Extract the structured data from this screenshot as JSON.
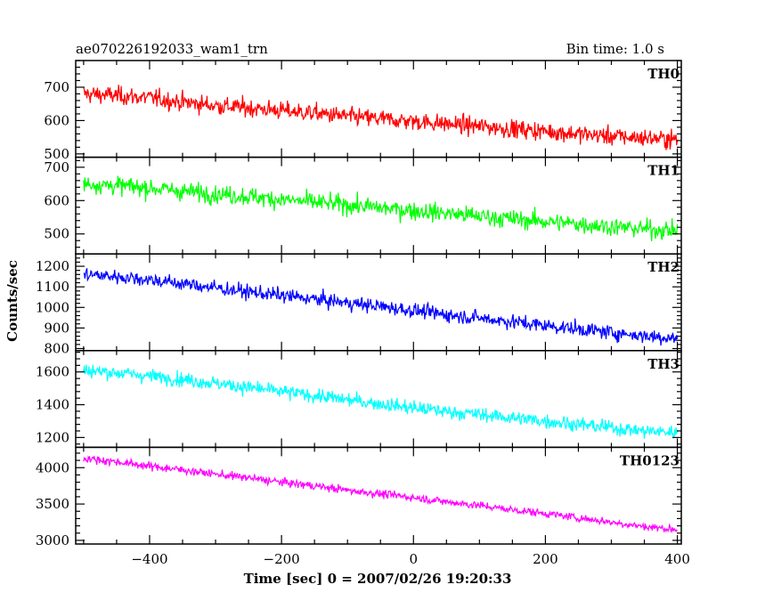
{
  "header": {
    "title": "ae070226192033_wam1_trn",
    "bin_time": "Bin time: 1.0 s"
  },
  "chart_data": {
    "type": "line",
    "xlabel": "Time [sec] 0 = 2007/02/26 19:20:33",
    "ylabel": "Counts/sec",
    "xlim": [
      -512,
      406
    ],
    "x_ticks": [
      -400,
      -200,
      0,
      200,
      400
    ],
    "grid": false,
    "panels": [
      {
        "name": "TH0",
        "color": "#ff0000",
        "ylim": [
          490,
          780
        ],
        "y_ticks": [
          500,
          600,
          700
        ],
        "x": [
          -500,
          -450,
          -400,
          -350,
          -300,
          -250,
          -200,
          -150,
          -100,
          -50,
          0,
          50,
          100,
          150,
          200,
          250,
          300,
          350,
          400
        ],
        "y": [
          680,
          675,
          668,
          655,
          645,
          638,
          630,
          622,
          612,
          605,
          598,
          590,
          583,
          575,
          568,
          560,
          553,
          548,
          543
        ],
        "noise": 35
      },
      {
        "name": "TH1",
        "color": "#00ff00",
        "ylim": [
          440,
          730
        ],
        "y_ticks": [
          500,
          600,
          700
        ],
        "x": [
          -500,
          -450,
          -400,
          -350,
          -300,
          -250,
          -200,
          -150,
          -100,
          -50,
          0,
          50,
          100,
          150,
          200,
          250,
          300,
          350,
          400
        ],
        "y": [
          650,
          645,
          638,
          628,
          620,
          612,
          603,
          595,
          587,
          578,
          570,
          562,
          553,
          545,
          537,
          530,
          522,
          515,
          510
        ],
        "noise": 35
      },
      {
        "name": "TH2",
        "color": "#0000ff",
        "ylim": [
          790,
          1260
        ],
        "y_ticks": [
          800,
          900,
          1000,
          1100,
          1200
        ],
        "x": [
          -500,
          -450,
          -400,
          -350,
          -300,
          -250,
          -200,
          -150,
          -100,
          -50,
          0,
          50,
          100,
          150,
          200,
          250,
          300,
          350,
          400
        ],
        "y": [
          1160,
          1150,
          1135,
          1115,
          1095,
          1075,
          1058,
          1040,
          1022,
          1005,
          985,
          965,
          948,
          930,
          912,
          895,
          878,
          862,
          850
        ],
        "noise": 45
      },
      {
        "name": "TH3",
        "color": "#00ffff",
        "ylim": [
          1140,
          1730
        ],
        "y_ticks": [
          1200,
          1400,
          1600
        ],
        "x": [
          -500,
          -450,
          -400,
          -350,
          -300,
          -250,
          -200,
          -150,
          -100,
          -50,
          0,
          50,
          100,
          150,
          200,
          250,
          300,
          350,
          400
        ],
        "y": [
          1610,
          1595,
          1575,
          1555,
          1530,
          1505,
          1480,
          1455,
          1430,
          1405,
          1380,
          1360,
          1340,
          1320,
          1300,
          1280,
          1260,
          1240,
          1230
        ],
        "noise": 55
      },
      {
        "name": "TH0123",
        "color": "#ff00ff",
        "ylim": [
          2950,
          4280
        ],
        "y_ticks": [
          3000,
          3500,
          4000
        ],
        "x": [
          -500,
          -450,
          -400,
          -350,
          -300,
          -250,
          -200,
          -150,
          -100,
          -50,
          0,
          50,
          100,
          150,
          200,
          250,
          300,
          350,
          400
        ],
        "y": [
          4130,
          4080,
          4020,
          3970,
          3910,
          3860,
          3800,
          3750,
          3690,
          3640,
          3590,
          3530,
          3480,
          3420,
          3370,
          3310,
          3250,
          3190,
          3150
        ],
        "noise": 70
      }
    ]
  }
}
